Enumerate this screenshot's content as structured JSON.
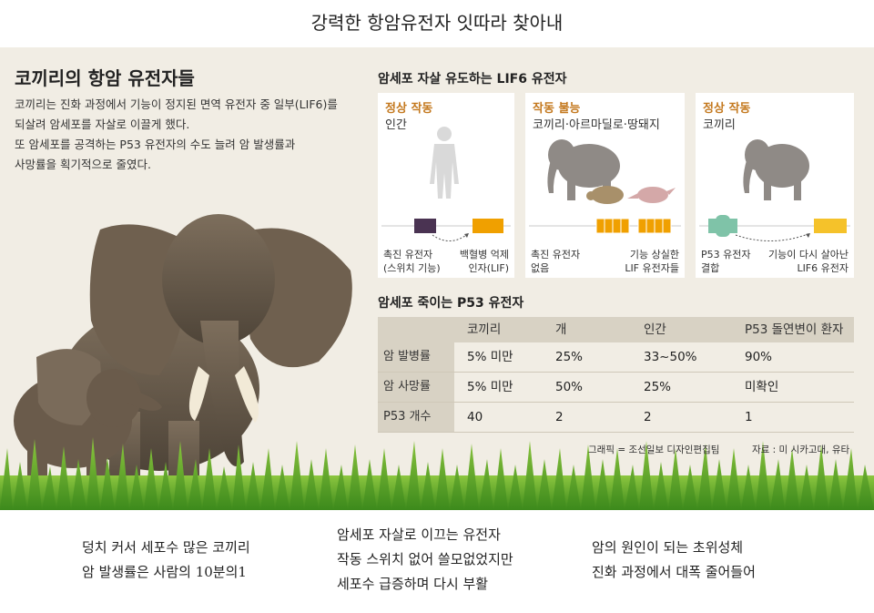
{
  "header": {
    "title": "강력한 항암유전자 잇따라 찾아내"
  },
  "left": {
    "title": "코끼리의 항암 유전자들",
    "desc_lines": [
      "코끼리는 진화 과정에서 기능이 정지된 면역 유전자 중 일부(LIF6)를",
      "되살려 암세포를 자살로 이끌게 했다.",
      "또 암세포를 공격하는 P53 유전자의 수도 늘려 암 발생률과",
      "사망률을 획기적으로 줄였다."
    ]
  },
  "lif6": {
    "title": "암세포 자살 유도하는 LIF6 유전자",
    "cards": [
      {
        "status": "정상 작동",
        "subject": "인간",
        "label_left": [
          "촉진 유전자",
          "(스위치 기능)"
        ],
        "label_right": [
          "백혈병 억제",
          "인자(LIF)"
        ]
      },
      {
        "status": "작동 불능",
        "subject": "코끼리·아르마딜로·땅돼지",
        "label_left": [
          "촉진 유전자",
          "없음"
        ],
        "label_right": [
          "기능 상실한",
          "LIF 유전자들"
        ]
      },
      {
        "status": "정상 작동",
        "subject": "코끼리",
        "label_left": [
          "P53 유전자",
          "결합"
        ],
        "label_right": [
          "기능이 다시 살아난",
          "LIF6 유전자"
        ]
      }
    ],
    "colors": {
      "status": "#c4791f",
      "switch": "#4a3352",
      "lif": "#f0a000",
      "lif6": "#f5c22a",
      "p53": "#7fc3a8"
    }
  },
  "p53": {
    "title": "암세포 죽이는 P53 유전자",
    "columns": [
      "코끼리",
      "개",
      "인간",
      "P53 돌연변이 환자"
    ],
    "rows": [
      {
        "label": "암 발병률",
        "values": [
          "5% 미만",
          "25%",
          "33~50%",
          "90%"
        ]
      },
      {
        "label": "암 사망률",
        "values": [
          "5% 미만",
          "50%",
          "25%",
          "미확인"
        ]
      },
      {
        "label": "P53 개수",
        "values": [
          "40",
          "2",
          "2",
          "1"
        ]
      }
    ]
  },
  "credits": {
    "graphic": "그래픽 = 조선일보 디자인편집팀",
    "source": "자료 : 미 시카고대, 유타"
  },
  "captions": [
    [
      "덩치 커서 세포수 많은 코끼리",
      "암 발생률은 사람의 10분의1"
    ],
    [
      "암세포 자살로 이끄는 유전자",
      "작동 스위치 없어 쓸모없었지만",
      "세포수 급증하며 다시 부활"
    ],
    [
      "암의 원인이 되는 초위성체",
      "진화 과정에서 대폭 줄어들어"
    ]
  ]
}
